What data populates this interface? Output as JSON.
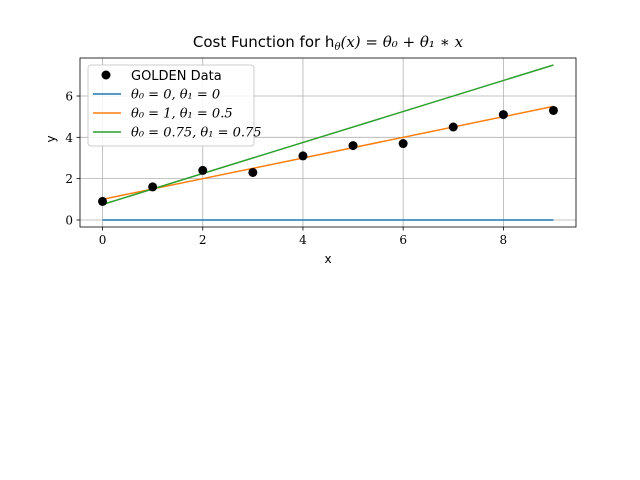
{
  "chart_data": {
    "type": "line",
    "title": "Cost Function for hθ(x) = θ0 + θ1 * x",
    "title_parts": {
      "prefix": "Cost Function for h",
      "sub": "θ",
      "formula": "(x) = θ₀ + θ₁ ∗ x"
    },
    "xlabel": "x",
    "ylabel": "y",
    "xlim": [
      -0.45,
      9.45
    ],
    "ylim": [
      -0.34,
      7.84
    ],
    "xticks": [
      0,
      2,
      4,
      6,
      8
    ],
    "yticks": [
      0,
      2,
      4,
      6
    ],
    "grid": true,
    "legend_position": "top-left",
    "scatter": {
      "name": "GOLDEN Data",
      "color": "#000000",
      "x": [
        0,
        1,
        2,
        3,
        4,
        5,
        6,
        7,
        8,
        9
      ],
      "y": [
        0.9,
        1.6,
        2.4,
        2.3,
        3.1,
        3.6,
        3.7,
        4.5,
        5.1,
        5.3
      ]
    },
    "series": [
      {
        "name": "θ0 = 0, θ1 = 0",
        "label_display": "θ₀ = 0, θ₁ = 0",
        "theta0": 0,
        "theta1": 0,
        "color": "#1f77b4",
        "x": [
          0,
          9
        ],
        "y": [
          0,
          0
        ]
      },
      {
        "name": "θ0 = 1, θ1 = 0.5",
        "label_display": "θ₀ = 1, θ₁ = 0.5",
        "theta0": 1,
        "theta1": 0.5,
        "color": "#ff7f0e",
        "x": [
          0,
          9
        ],
        "y": [
          1,
          5.5
        ]
      },
      {
        "name": "θ0 = 0.75, θ1 = 0.75",
        "label_display": "θ₀ = 0.75, θ₁ = 0.75",
        "theta0": 0.75,
        "theta1": 0.75,
        "color": "#2ca02c",
        "x": [
          0,
          9
        ],
        "y": [
          0.75,
          7.5
        ]
      }
    ]
  }
}
